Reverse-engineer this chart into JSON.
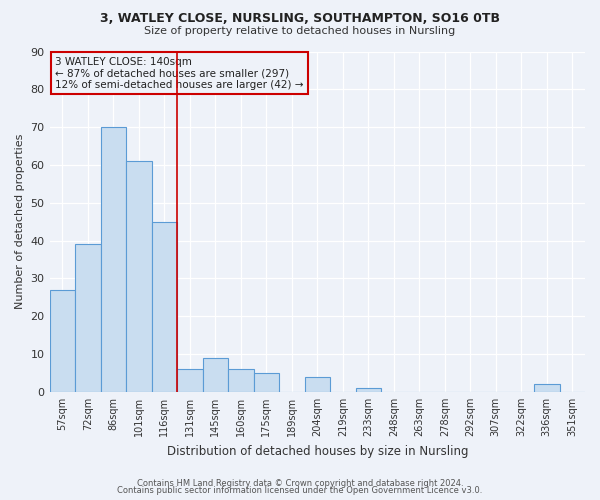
{
  "title": "3, WATLEY CLOSE, NURSLING, SOUTHAMPTON, SO16 0TB",
  "subtitle": "Size of property relative to detached houses in Nursling",
  "xlabel": "Distribution of detached houses by size in Nursling",
  "ylabel": "Number of detached properties",
  "categories": [
    "57sqm",
    "72sqm",
    "86sqm",
    "101sqm",
    "116sqm",
    "131sqm",
    "145sqm",
    "160sqm",
    "175sqm",
    "189sqm",
    "204sqm",
    "219sqm",
    "233sqm",
    "248sqm",
    "263sqm",
    "278sqm",
    "292sqm",
    "307sqm",
    "322sqm",
    "336sqm",
    "351sqm"
  ],
  "values": [
    27,
    39,
    70,
    61,
    45,
    6,
    9,
    6,
    5,
    0,
    4,
    0,
    1,
    0,
    0,
    0,
    0,
    0,
    0,
    2,
    0
  ],
  "highlight_index": 5,
  "bar_color_normal": "#c9ddf0",
  "bar_edge_color": "#5b9bd5",
  "highlight_edge_color": "#cc0000",
  "ylim": [
    0,
    90
  ],
  "yticks": [
    0,
    10,
    20,
    30,
    40,
    50,
    60,
    70,
    80,
    90
  ],
  "annotation_title": "3 WATLEY CLOSE: 140sqm",
  "annotation_line1": "← 87% of detached houses are smaller (297)",
  "annotation_line2": "12% of semi-detached houses are larger (42) →",
  "annotation_box_edge": "#cc0000",
  "bg_color": "#eef2f9",
  "footer_line1": "Contains HM Land Registry data © Crown copyright and database right 2024.",
  "footer_line2": "Contains public sector information licensed under the Open Government Licence v3.0."
}
